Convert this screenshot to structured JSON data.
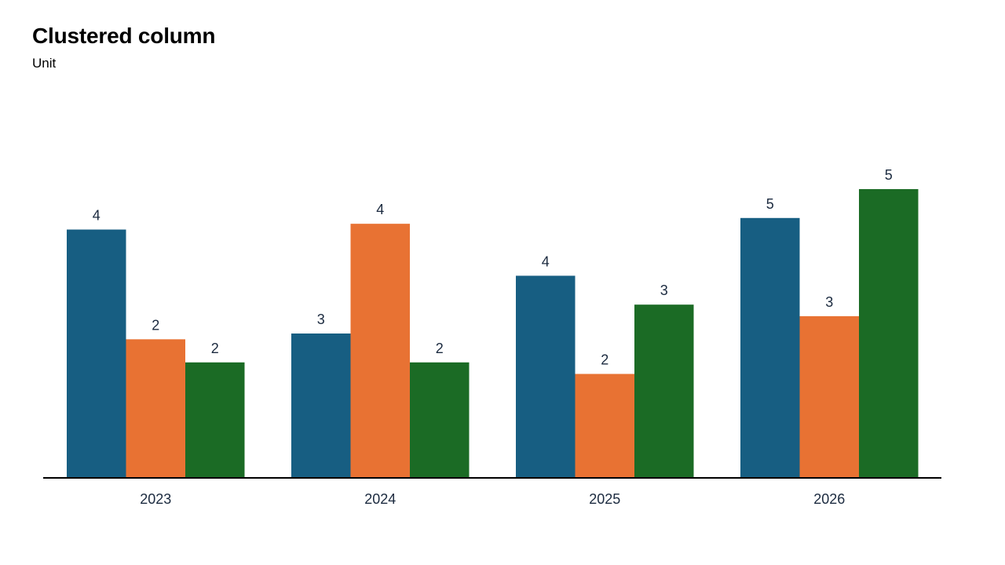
{
  "chart_data": {
    "type": "bar",
    "title": "Clustered column",
    "subtitle": "Unit",
    "xlabel": "",
    "ylabel": "",
    "categories": [
      "2023",
      "2024",
      "2025",
      "2026"
    ],
    "series": [
      {
        "values": [
          4.3,
          2.5,
          3.5,
          4.5
        ],
        "labels": [
          "4",
          "3",
          "4",
          "5"
        ],
        "color": "#175e82"
      },
      {
        "values": [
          2.4,
          4.4,
          1.8,
          2.8
        ],
        "labels": [
          "2",
          "4",
          "2",
          "3"
        ],
        "color": "#e87233"
      },
      {
        "values": [
          2.0,
          2.0,
          3.0,
          5.0
        ],
        "labels": [
          "2",
          "2",
          "3",
          "5"
        ],
        "color": "#1b6b25"
      }
    ],
    "ylim": [
      0,
      5.0
    ],
    "grid": false,
    "legend": "none",
    "axis_color": "#000000"
  }
}
